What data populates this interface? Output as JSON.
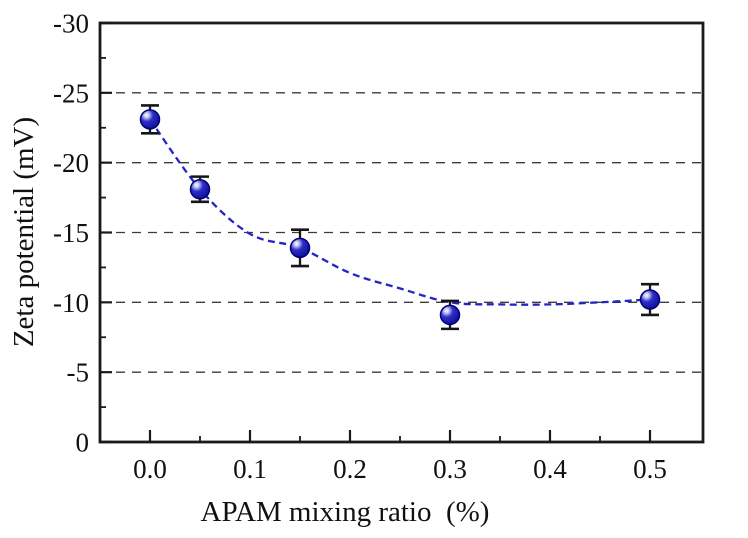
{
  "chart_data": {
    "type": "scatter",
    "xlabel": "APAM mixing ratio  (%)",
    "ylabel": "Zeta potential (mV)",
    "series": [
      {
        "name": "zeta-potential",
        "x": [
          0.0,
          0.05,
          0.15,
          0.3,
          0.5
        ],
        "y": [
          -23.1,
          -18.1,
          -13.9,
          -9.1,
          -10.2
        ],
        "yerr": [
          1.0,
          0.9,
          1.3,
          1.0,
          1.1
        ]
      }
    ],
    "trend_line": [
      [
        0.0,
        -23.1
      ],
      [
        0.05,
        -18.1
      ],
      [
        0.1,
        -14.9
      ],
      [
        0.15,
        -13.9
      ],
      [
        0.2,
        -12.1
      ],
      [
        0.25,
        -11.0
      ],
      [
        0.3,
        -10.0
      ],
      [
        0.35,
        -9.85
      ],
      [
        0.4,
        -9.85
      ],
      [
        0.45,
        -10.0
      ],
      [
        0.5,
        -10.2
      ]
    ],
    "xlim": [
      -0.05,
      0.553
    ],
    "ylim_top": -30,
    "ylim_bottom": 0,
    "x_ticks": [
      0.0,
      0.1,
      0.2,
      0.3,
      0.4,
      0.5
    ],
    "x_tick_labels": [
      "0.0",
      "0.1",
      "0.2",
      "0.3",
      "0.4",
      "0.5"
    ],
    "x_minor_ticks": [
      0.05,
      0.15,
      0.25,
      0.35,
      0.45
    ],
    "y_ticks": [
      -30,
      -25,
      -20,
      -15,
      -10,
      -5,
      0
    ],
    "y_tick_labels": [
      "-30",
      "-25",
      "-20",
      "-15",
      "-10",
      "-5",
      "0"
    ],
    "y_minor_ticks": [
      -27.5,
      -22.5,
      -17.5,
      -12.5,
      -7.5,
      -2.5
    ],
    "grid": "horizontal dashed at y major ticks (excluding spines)",
    "legend": null,
    "colors": {
      "marker_fill": "#1c1cb4",
      "marker_edge": "#00007d",
      "marker_highlight": "#ffffff",
      "trend_line": "#2424c8",
      "grid_line": "#3c3c3c",
      "axis": "#1a1a1a",
      "error_bar": "#161616",
      "background": "#ffffff"
    }
  }
}
